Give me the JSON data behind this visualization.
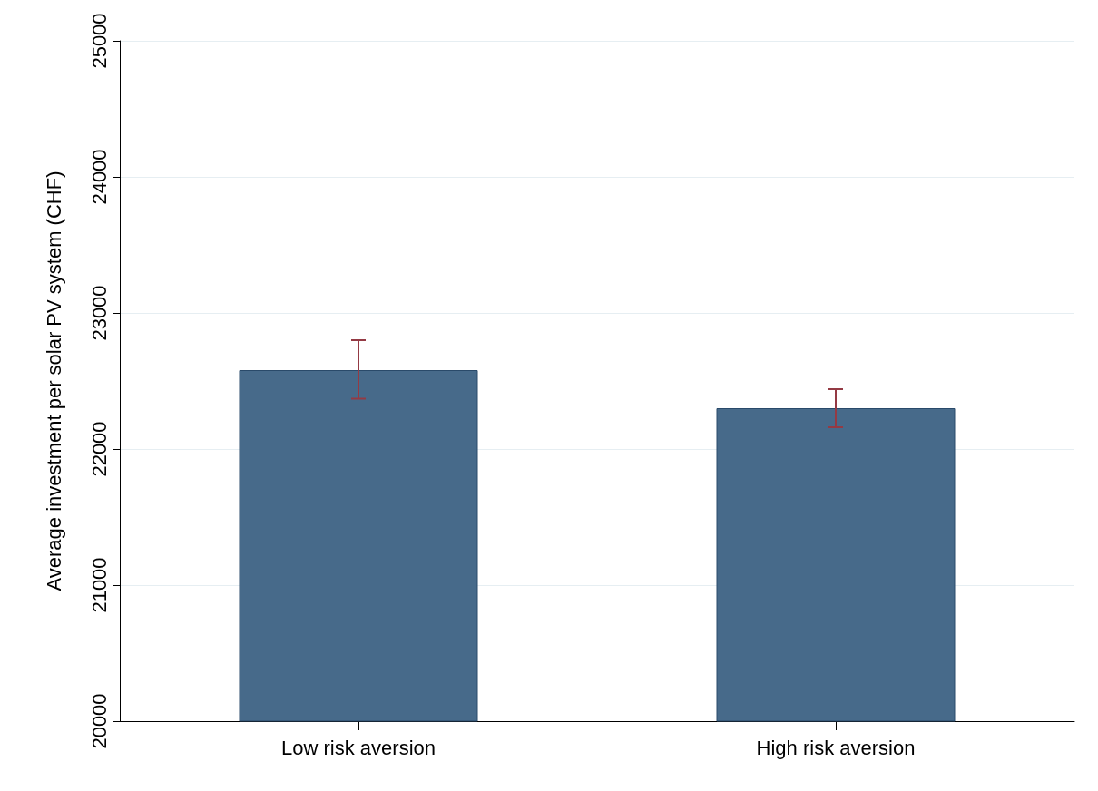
{
  "chart_data": {
    "type": "bar",
    "ylabel": "Average investment per solar PV system (CHF)",
    "categories": [
      "Low risk aversion",
      "High risk aversion"
    ],
    "series": [
      {
        "color": "#476a8a",
        "values": [
          22580,
          22300
        ],
        "errors": [
          [
            22370,
            22800
          ],
          [
            22160,
            22440
          ]
        ]
      }
    ],
    "ylim": [
      20000,
      25000
    ],
    "yticks": [
      20000,
      21000,
      22000,
      23000,
      24000,
      25000
    ],
    "grid": "y"
  }
}
